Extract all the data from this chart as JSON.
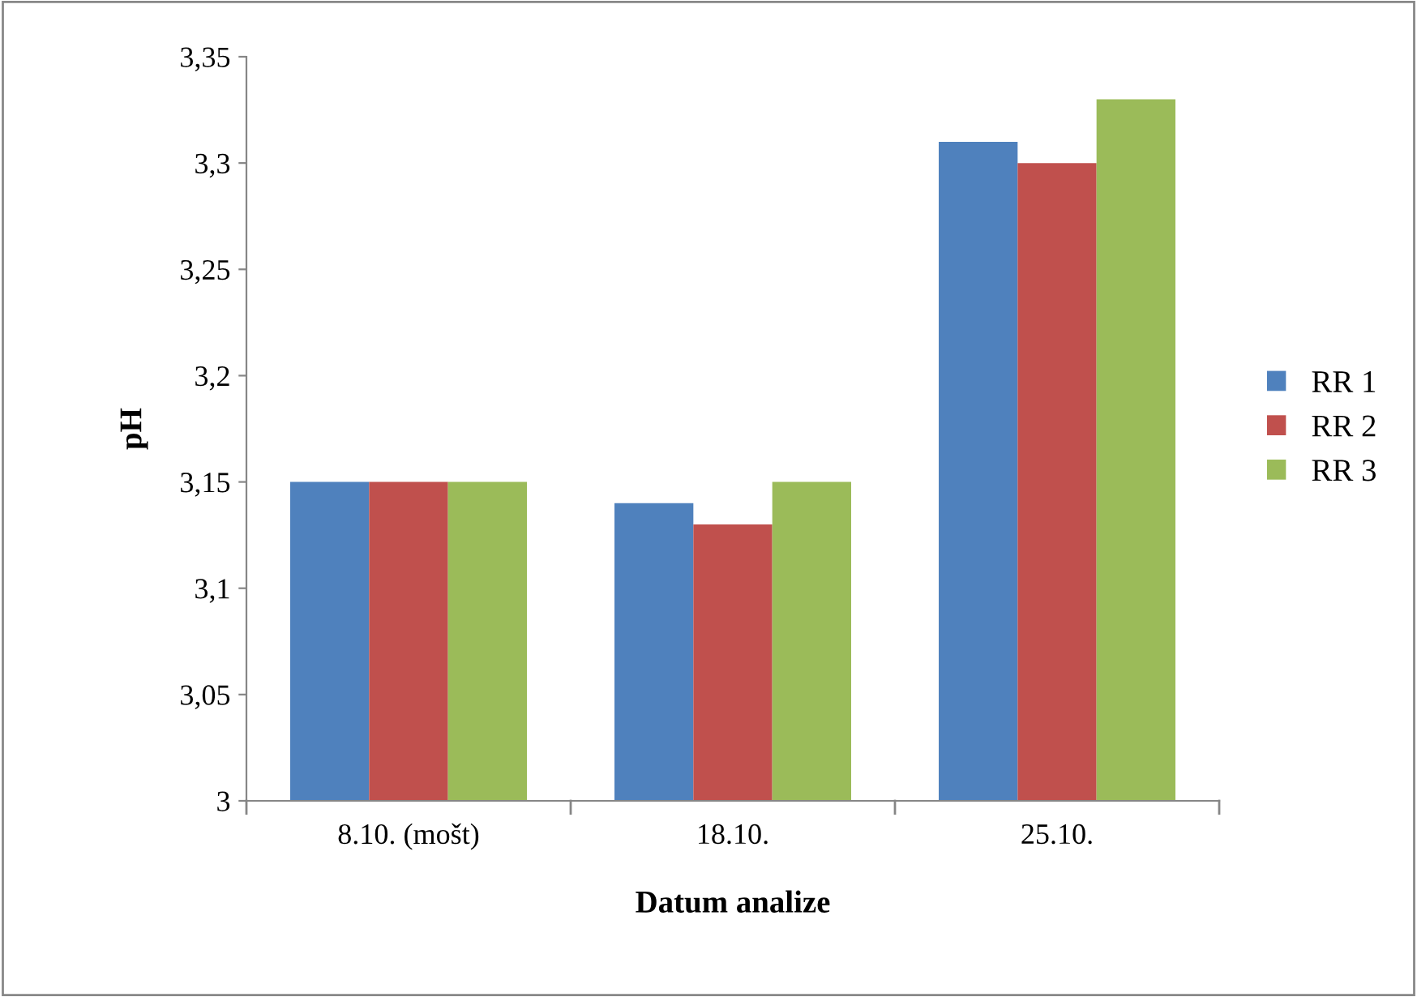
{
  "chart_data": {
    "type": "bar",
    "xlabel": "Datum analize",
    "ylabel": "pH",
    "categories": [
      "8.10. (mošt)",
      "18.10.",
      "25.10."
    ],
    "series": [
      {
        "name": "RR 1",
        "color": "#4f81bd",
        "values": [
          3.15,
          3.14,
          3.31
        ]
      },
      {
        "name": "RR 2",
        "color": "#c0504d",
        "values": [
          3.15,
          3.13,
          3.3
        ]
      },
      {
        "name": "RR 3",
        "color": "#9bbb59",
        "values": [
          3.15,
          3.15,
          3.33
        ]
      }
    ],
    "ylim": [
      3,
      3.35
    ],
    "yticks": [
      {
        "value": 3,
        "label": "3"
      },
      {
        "value": 3.05,
        "label": "3,05"
      },
      {
        "value": 3.1,
        "label": "3,1"
      },
      {
        "value": 3.15,
        "label": "3,15"
      },
      {
        "value": 3.2,
        "label": "3,2"
      },
      {
        "value": 3.25,
        "label": "3,25"
      },
      {
        "value": 3.3,
        "label": "3,3"
      },
      {
        "value": 3.35,
        "label": "3,35"
      }
    ],
    "grid": false,
    "legend": "right"
  }
}
